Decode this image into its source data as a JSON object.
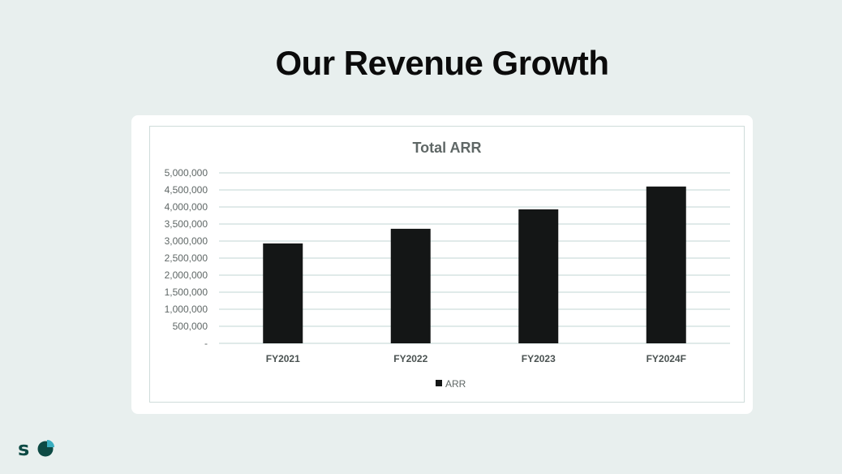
{
  "slide": {
    "title": "Our Revenue Growth",
    "logo_text": "SC"
  },
  "colors": {
    "background": "#e8efee",
    "bar": "#141616",
    "grid": "#d6e3e2",
    "logo": "#0d4a44",
    "logo_accent": "#3aaec0"
  },
  "chart_data": {
    "type": "bar",
    "title": "Total ARR",
    "categories": [
      "FY2021",
      "FY2022",
      "FY2023",
      "FY2024F"
    ],
    "series": [
      {
        "name": "ARR",
        "values": [
          2930000,
          3360000,
          3930000,
          4600000
        ]
      }
    ],
    "ylim": [
      0,
      5000000
    ],
    "yticks": [
      0,
      500000,
      1000000,
      1500000,
      2000000,
      2500000,
      3000000,
      3500000,
      4000000,
      4500000,
      5000000
    ],
    "ytick_labels": [
      "-",
      "500,000",
      "1,000,000",
      "1,500,000",
      "2,000,000",
      "2,500,000",
      "3,000,000",
      "3,500,000",
      "4,000,000",
      "4,500,000",
      "5,000,000"
    ],
    "xlabel": "",
    "ylabel": "",
    "grid": true,
    "legend": "bottom"
  }
}
